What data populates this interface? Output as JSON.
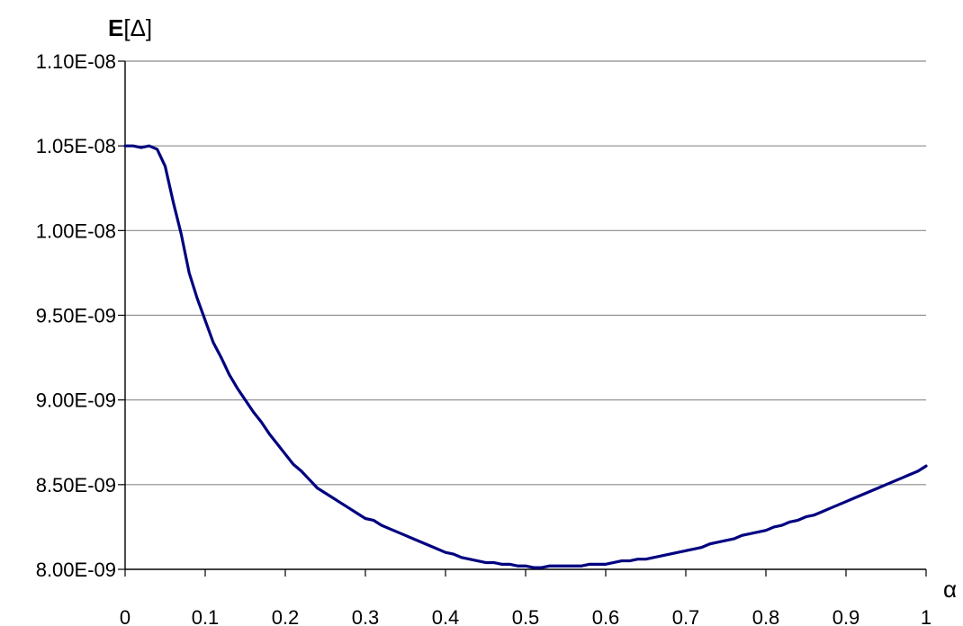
{
  "chart_data": {
    "type": "line",
    "title": "",
    "ylabel_bold": "E",
    "ylabel_rest": "[Δ]",
    "xlabel": "α",
    "xlim": [
      0,
      1
    ],
    "ylim": [
      8e-09,
      1.1e-08
    ],
    "x_ticks": [
      0,
      0.1,
      0.2,
      0.3,
      0.4,
      0.5,
      0.6,
      0.7,
      0.8,
      0.9,
      1
    ],
    "x_tick_labels": [
      "0",
      "0.1",
      "0.2",
      "0.3",
      "0.4",
      "0.5",
      "0.6",
      "0.7",
      "0.8",
      "0.9",
      "1"
    ],
    "y_ticks": [
      8e-09,
      8.5e-09,
      9e-09,
      9.5e-09,
      1e-08,
      1.05e-08,
      1.1e-08
    ],
    "y_tick_labels": [
      "8.00E-09",
      "8.50E-09",
      "9.00E-09",
      "9.50E-09",
      "1.00E-08",
      "1.05E-08",
      "1.10E-08"
    ],
    "grid": "horizontal",
    "legend": "none",
    "line_color": "#000080",
    "grid_color": "#8c8c8c",
    "series": [
      {
        "x": [
          0,
          0.01,
          0.02,
          0.03,
          0.04,
          0.05,
          0.06,
          0.07,
          0.08,
          0.09,
          0.1,
          0.11,
          0.12,
          0.13,
          0.14,
          0.15,
          0.16,
          0.17,
          0.18,
          0.19,
          0.2,
          0.21,
          0.22,
          0.23,
          0.24,
          0.25,
          0.26,
          0.27,
          0.28,
          0.29,
          0.3,
          0.31,
          0.32,
          0.33,
          0.34,
          0.35,
          0.36,
          0.37,
          0.38,
          0.39,
          0.4,
          0.41,
          0.42,
          0.43,
          0.44,
          0.45,
          0.46,
          0.47,
          0.48,
          0.49,
          0.5,
          0.51,
          0.52,
          0.53,
          0.54,
          0.55,
          0.56,
          0.57,
          0.58,
          0.59,
          0.6,
          0.61,
          0.62,
          0.63,
          0.64,
          0.65,
          0.66,
          0.67,
          0.68,
          0.69,
          0.7,
          0.71,
          0.72,
          0.73,
          0.74,
          0.75,
          0.76,
          0.77,
          0.78,
          0.79,
          0.8,
          0.81,
          0.82,
          0.83,
          0.84,
          0.85,
          0.86,
          0.87,
          0.88,
          0.89,
          0.9,
          0.91,
          0.92,
          0.93,
          0.94,
          0.95,
          0.96,
          0.97,
          0.98,
          0.99,
          1.0
        ],
        "y": [
          1.05e-08,
          1.05e-08,
          1.049e-08,
          1.05e-08,
          1.048e-08,
          1.038e-08,
          1.017e-08,
          9.98e-09,
          9.75e-09,
          9.6e-09,
          9.47e-09,
          9.34e-09,
          9.25e-09,
          9.15e-09,
          9.07e-09,
          9e-09,
          8.93e-09,
          8.87e-09,
          8.8e-09,
          8.74e-09,
          8.68e-09,
          8.62e-09,
          8.58e-09,
          8.53e-09,
          8.48e-09,
          8.45e-09,
          8.42e-09,
          8.39e-09,
          8.36e-09,
          8.33e-09,
          8.3e-09,
          8.29e-09,
          8.26e-09,
          8.24e-09,
          8.22e-09,
          8.2e-09,
          8.18e-09,
          8.16e-09,
          8.14e-09,
          8.12e-09,
          8.1e-09,
          8.09e-09,
          8.07e-09,
          8.06e-09,
          8.05e-09,
          8.04e-09,
          8.04e-09,
          8.03e-09,
          8.03e-09,
          8.02e-09,
          8.02e-09,
          8.01e-09,
          8.01e-09,
          8.02e-09,
          8.02e-09,
          8.02e-09,
          8.02e-09,
          8.02e-09,
          8.03e-09,
          8.03e-09,
          8.03e-09,
          8.04e-09,
          8.05e-09,
          8.05e-09,
          8.06e-09,
          8.06e-09,
          8.07e-09,
          8.08e-09,
          8.09e-09,
          8.1e-09,
          8.11e-09,
          8.12e-09,
          8.13e-09,
          8.15e-09,
          8.16e-09,
          8.17e-09,
          8.18e-09,
          8.2e-09,
          8.21e-09,
          8.22e-09,
          8.23e-09,
          8.25e-09,
          8.26e-09,
          8.28e-09,
          8.29e-09,
          8.31e-09,
          8.32e-09,
          8.34e-09,
          8.36e-09,
          8.38e-09,
          8.4e-09,
          8.42e-09,
          8.44e-09,
          8.46e-09,
          8.48e-09,
          8.5e-09,
          8.52e-09,
          8.54e-09,
          8.56e-09,
          8.58e-09,
          8.61e-09
        ]
      }
    ]
  }
}
